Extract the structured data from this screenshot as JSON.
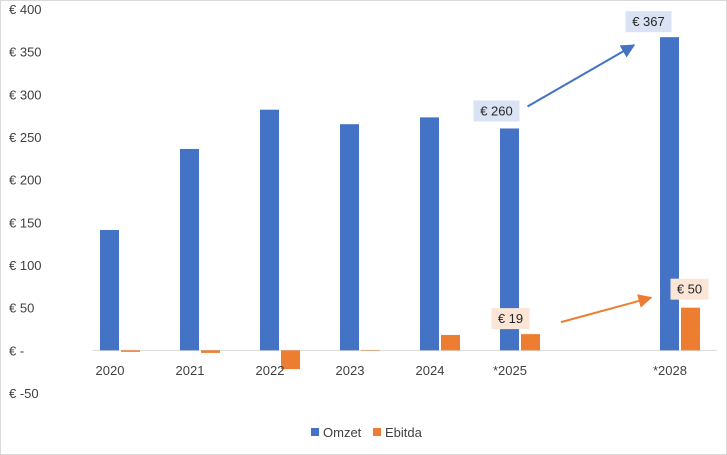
{
  "chart_data": {
    "type": "bar",
    "title": "",
    "xlabel": "",
    "ylabel": "",
    "ylim": [
      -50,
      400
    ],
    "y_tick_labels": [
      "€ -50",
      "€ -",
      "€ 50",
      "€ 100",
      "€ 150",
      "€ 200",
      "€ 250",
      "€ 300",
      "€ 350",
      "€ 400"
    ],
    "y_tick_values": [
      -50,
      0,
      50,
      100,
      150,
      200,
      250,
      300,
      350,
      400
    ],
    "categories": [
      "2020",
      "2021",
      "2022",
      "2023",
      "2024",
      "*2025",
      "*2028"
    ],
    "category_slots": [
      0,
      1,
      2,
      3,
      4,
      5,
      7
    ],
    "series": [
      {
        "name": "Omzet",
        "color": "#4472c4",
        "values": [
          141,
          236,
          282,
          265,
          273,
          260,
          367
        ]
      },
      {
        "name": "Ebitda",
        "color": "#ed7d31",
        "values": [
          -1,
          -3,
          -22,
          0,
          18,
          19,
          50
        ]
      }
    ],
    "grid": false,
    "legend": "bottom",
    "annotations": [
      {
        "label": "€ 260",
        "series": "Omzet",
        "category": "*2025",
        "style": "blue-box"
      },
      {
        "label": "€ 367",
        "series": "Omzet",
        "category": "*2028",
        "style": "blue-box"
      },
      {
        "label": "€ 19",
        "series": "Ebitda",
        "category": "*2025",
        "style": "orange-box"
      },
      {
        "label": "€ 50",
        "series": "Ebitda",
        "category": "*2028",
        "style": "orange-box"
      }
    ],
    "arrows": [
      {
        "from": "*2025",
        "to": "*2028",
        "series": "Omzet",
        "color": "#4472c4"
      },
      {
        "from": "*2025",
        "to": "*2028",
        "series": "Ebitda",
        "color": "#ed7d31"
      }
    ]
  }
}
